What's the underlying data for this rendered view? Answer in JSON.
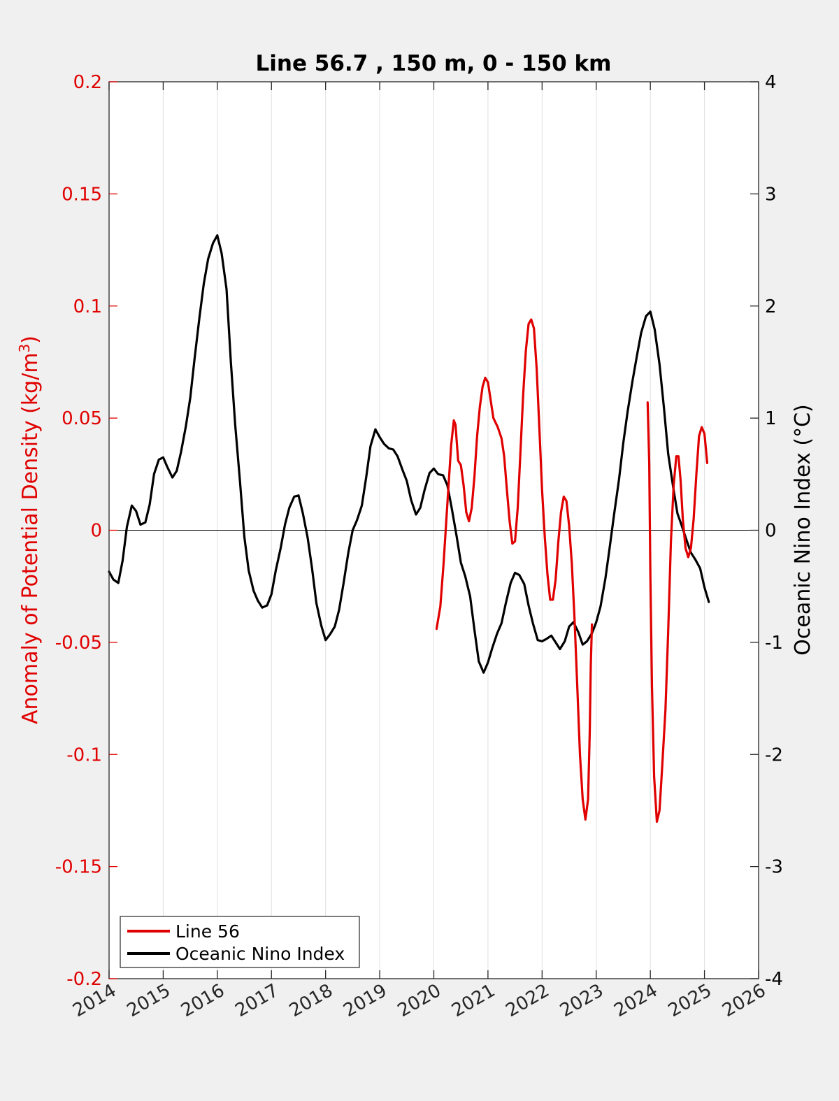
{
  "chart_data": {
    "type": "line",
    "title": "Line 56.7 , 150 m, 0 - 150 km",
    "ylabel_left_prefix": "Anomaly of Potential Density (kg/m",
    "ylabel_left_sup": "3",
    "ylabel_left_suffix": ")",
    "ylabel_right": "Oceanic Nino Index (°C)",
    "xlim": [
      2014,
      2026
    ],
    "ylim_left": [
      -0.2,
      0.2
    ],
    "ylim_right": [
      -4,
      4
    ],
    "x_ticks": [
      "2014",
      "2015",
      "2016",
      "2017",
      "2018",
      "2019",
      "2020",
      "2021",
      "2022",
      "2023",
      "2024",
      "2025",
      "2026"
    ],
    "y_left_ticks": [
      "0.2",
      "0.15",
      "0.1",
      "0.05",
      "0",
      "-0.05",
      "-0.1",
      "-0.15",
      "-0.2"
    ],
    "y_right_ticks": [
      "4",
      "3",
      "2",
      "1",
      "0",
      "-1",
      "-2",
      "-3",
      "-4"
    ],
    "grid": "vertical",
    "zero_line": true,
    "legend_position": "bottom-left",
    "colors": {
      "left_axis": "#e00000",
      "right_axis": "#000000",
      "line56": "#e00000",
      "oni": "#000000",
      "background": "#f0f0f0",
      "plot_bg": "#ffffff",
      "grid": "#e0e0e0"
    },
    "series": [
      {
        "name": "Line 56",
        "axis": "left",
        "color": "#e00000",
        "segments": [
          [
            [
              2020.05,
              -0.044
            ],
            [
              2020.12,
              -0.034
            ],
            [
              2020.18,
              -0.015
            ],
            [
              2020.25,
              0.012
            ],
            [
              2020.32,
              0.038
            ],
            [
              2020.37,
              0.049
            ],
            [
              2020.4,
              0.047
            ],
            [
              2020.45,
              0.031
            ],
            [
              2020.5,
              0.029
            ],
            [
              2020.55,
              0.02
            ],
            [
              2020.6,
              0.008
            ],
            [
              2020.65,
              0.004
            ],
            [
              2020.7,
              0.01
            ],
            [
              2020.75,
              0.024
            ],
            [
              2020.8,
              0.042
            ],
            [
              2020.85,
              0.055
            ],
            [
              2020.9,
              0.064
            ],
            [
              2020.95,
              0.068
            ],
            [
              2021.0,
              0.066
            ],
            [
              2021.05,
              0.058
            ],
            [
              2021.1,
              0.05
            ],
            [
              2021.18,
              0.046
            ],
            [
              2021.25,
              0.041
            ],
            [
              2021.3,
              0.033
            ],
            [
              2021.35,
              0.018
            ],
            [
              2021.4,
              0.004
            ],
            [
              2021.45,
              -0.006
            ],
            [
              2021.5,
              -0.005
            ],
            [
              2021.55,
              0.01
            ],
            [
              2021.6,
              0.035
            ],
            [
              2021.65,
              0.06
            ],
            [
              2021.7,
              0.08
            ],
            [
              2021.75,
              0.092
            ],
            [
              2021.8,
              0.094
            ],
            [
              2021.85,
              0.09
            ],
            [
              2021.9,
              0.072
            ],
            [
              2021.95,
              0.045
            ],
            [
              2022.0,
              0.018
            ],
            [
              2022.05,
              -0.003
            ],
            [
              2022.1,
              -0.02
            ],
            [
              2022.15,
              -0.031
            ],
            [
              2022.2,
              -0.031
            ],
            [
              2022.25,
              -0.022
            ],
            [
              2022.3,
              -0.005
            ],
            [
              2022.35,
              0.008
            ],
            [
              2022.4,
              0.015
            ],
            [
              2022.45,
              0.013
            ],
            [
              2022.5,
              0.002
            ],
            [
              2022.55,
              -0.015
            ],
            [
              2022.6,
              -0.04
            ],
            [
              2022.65,
              -0.07
            ],
            [
              2022.7,
              -0.1
            ],
            [
              2022.75,
              -0.12
            ],
            [
              2022.8,
              -0.129
            ],
            [
              2022.85,
              -0.12
            ],
            [
              2022.88,
              -0.09
            ],
            [
              2022.9,
              -0.06
            ],
            [
              2022.92,
              -0.042
            ]
          ],
          [
            [
              2023.95,
              0.057
            ],
            [
              2023.98,
              0.03
            ],
            [
              2024.0,
              -0.02
            ],
            [
              2024.03,
              -0.07
            ],
            [
              2024.07,
              -0.11
            ],
            [
              2024.12,
              -0.13
            ],
            [
              2024.17,
              -0.125
            ],
            [
              2024.22,
              -0.105
            ],
            [
              2024.28,
              -0.08
            ],
            [
              2024.33,
              -0.045
            ],
            [
              2024.38,
              -0.005
            ],
            [
              2024.43,
              0.02
            ],
            [
              2024.48,
              0.033
            ],
            [
              2024.52,
              0.033
            ],
            [
              2024.56,
              0.022
            ],
            [
              2024.6,
              0.005
            ],
            [
              2024.65,
              -0.008
            ],
            [
              2024.7,
              -0.012
            ],
            [
              2024.75,
              -0.008
            ],
            [
              2024.8,
              0.005
            ],
            [
              2024.85,
              0.025
            ],
            [
              2024.9,
              0.042
            ],
            [
              2024.95,
              0.046
            ],
            [
              2025.0,
              0.043
            ],
            [
              2025.05,
              0.03
            ]
          ]
        ]
      },
      {
        "name": "Oceanic Nino Index",
        "axis": "right",
        "color": "#000000",
        "segments": [
          [
            [
              2014.0,
              -0.37
            ],
            [
              2014.08,
              -0.44
            ],
            [
              2014.17,
              -0.47
            ],
            [
              2014.25,
              -0.27
            ],
            [
              2014.33,
              0.03
            ],
            [
              2014.42,
              0.22
            ],
            [
              2014.5,
              0.17
            ],
            [
              2014.58,
              0.05
            ],
            [
              2014.67,
              0.07
            ],
            [
              2014.75,
              0.23
            ],
            [
              2014.83,
              0.5
            ],
            [
              2014.92,
              0.63
            ],
            [
              2015.0,
              0.65
            ],
            [
              2015.08,
              0.56
            ],
            [
              2015.17,
              0.47
            ],
            [
              2015.25,
              0.53
            ],
            [
              2015.33,
              0.7
            ],
            [
              2015.42,
              0.93
            ],
            [
              2015.5,
              1.18
            ],
            [
              2015.58,
              1.53
            ],
            [
              2015.67,
              1.9
            ],
            [
              2015.75,
              2.2
            ],
            [
              2015.83,
              2.42
            ],
            [
              2015.92,
              2.56
            ],
            [
              2016.0,
              2.63
            ],
            [
              2016.08,
              2.47
            ],
            [
              2016.17,
              2.15
            ],
            [
              2016.25,
              1.5
            ],
            [
              2016.33,
              0.94
            ],
            [
              2016.42,
              0.43
            ],
            [
              2016.5,
              -0.06
            ],
            [
              2016.58,
              -0.36
            ],
            [
              2016.67,
              -0.54
            ],
            [
              2016.75,
              -0.63
            ],
            [
              2016.83,
              -0.69
            ],
            [
              2016.92,
              -0.67
            ],
            [
              2017.0,
              -0.57
            ],
            [
              2017.08,
              -0.36
            ],
            [
              2017.17,
              -0.16
            ],
            [
              2017.25,
              0.05
            ],
            [
              2017.33,
              0.2
            ],
            [
              2017.42,
              0.3
            ],
            [
              2017.5,
              0.31
            ],
            [
              2017.58,
              0.15
            ],
            [
              2017.67,
              -0.07
            ],
            [
              2017.75,
              -0.34
            ],
            [
              2017.83,
              -0.65
            ],
            [
              2017.92,
              -0.85
            ],
            [
              2018.0,
              -0.98
            ],
            [
              2018.08,
              -0.93
            ],
            [
              2018.17,
              -0.86
            ],
            [
              2018.25,
              -0.71
            ],
            [
              2018.33,
              -0.48
            ],
            [
              2018.42,
              -0.2
            ],
            [
              2018.5,
              0.0
            ],
            [
              2018.58,
              0.09
            ],
            [
              2018.67,
              0.22
            ],
            [
              2018.75,
              0.47
            ],
            [
              2018.83,
              0.75
            ],
            [
              2018.92,
              0.9
            ],
            [
              2019.0,
              0.83
            ],
            [
              2019.08,
              0.77
            ],
            [
              2019.17,
              0.73
            ],
            [
              2019.25,
              0.72
            ],
            [
              2019.33,
              0.66
            ],
            [
              2019.42,
              0.54
            ],
            [
              2019.5,
              0.44
            ],
            [
              2019.58,
              0.27
            ],
            [
              2019.67,
              0.14
            ],
            [
              2019.75,
              0.2
            ],
            [
              2019.83,
              0.36
            ],
            [
              2019.92,
              0.51
            ],
            [
              2020.0,
              0.55
            ],
            [
              2020.08,
              0.5
            ],
            [
              2020.17,
              0.49
            ],
            [
              2020.25,
              0.4
            ],
            [
              2020.33,
              0.2
            ],
            [
              2020.42,
              -0.05
            ],
            [
              2020.5,
              -0.29
            ],
            [
              2020.58,
              -0.41
            ],
            [
              2020.67,
              -0.59
            ],
            [
              2020.75,
              -0.89
            ],
            [
              2020.83,
              -1.17
            ],
            [
              2020.92,
              -1.27
            ],
            [
              2021.0,
              -1.18
            ],
            [
              2021.08,
              -1.05
            ],
            [
              2021.17,
              -0.92
            ],
            [
              2021.25,
              -0.83
            ],
            [
              2021.33,
              -0.65
            ],
            [
              2021.42,
              -0.47
            ],
            [
              2021.5,
              -0.38
            ],
            [
              2021.58,
              -0.4
            ],
            [
              2021.67,
              -0.48
            ],
            [
              2021.75,
              -0.67
            ],
            [
              2021.83,
              -0.83
            ],
            [
              2021.92,
              -0.98
            ],
            [
              2022.0,
              -0.99
            ],
            [
              2022.08,
              -0.97
            ],
            [
              2022.17,
              -0.94
            ],
            [
              2022.25,
              -1.0
            ],
            [
              2022.33,
              -1.06
            ],
            [
              2022.42,
              -0.99
            ],
            [
              2022.5,
              -0.86
            ],
            [
              2022.58,
              -0.82
            ],
            [
              2022.67,
              -0.91
            ],
            [
              2022.75,
              -1.02
            ],
            [
              2022.83,
              -0.99
            ],
            [
              2022.92,
              -0.92
            ],
            [
              2023.0,
              -0.82
            ],
            [
              2023.08,
              -0.68
            ],
            [
              2023.17,
              -0.43
            ],
            [
              2023.25,
              -0.15
            ],
            [
              2023.33,
              0.14
            ],
            [
              2023.42,
              0.45
            ],
            [
              2023.5,
              0.78
            ],
            [
              2023.58,
              1.06
            ],
            [
              2023.67,
              1.33
            ],
            [
              2023.75,
              1.55
            ],
            [
              2023.83,
              1.76
            ],
            [
              2023.92,
              1.91
            ],
            [
              2024.0,
              1.95
            ],
            [
              2024.08,
              1.79
            ],
            [
              2024.17,
              1.48
            ],
            [
              2024.25,
              1.1
            ],
            [
              2024.33,
              0.68
            ],
            [
              2024.42,
              0.39
            ],
            [
              2024.5,
              0.15
            ],
            [
              2024.58,
              0.04
            ],
            [
              2024.67,
              -0.09
            ],
            [
              2024.75,
              -0.2
            ],
            [
              2024.83,
              -0.26
            ],
            [
              2024.92,
              -0.34
            ],
            [
              2025.0,
              -0.51
            ],
            [
              2025.08,
              -0.64
            ]
          ]
        ]
      }
    ]
  }
}
